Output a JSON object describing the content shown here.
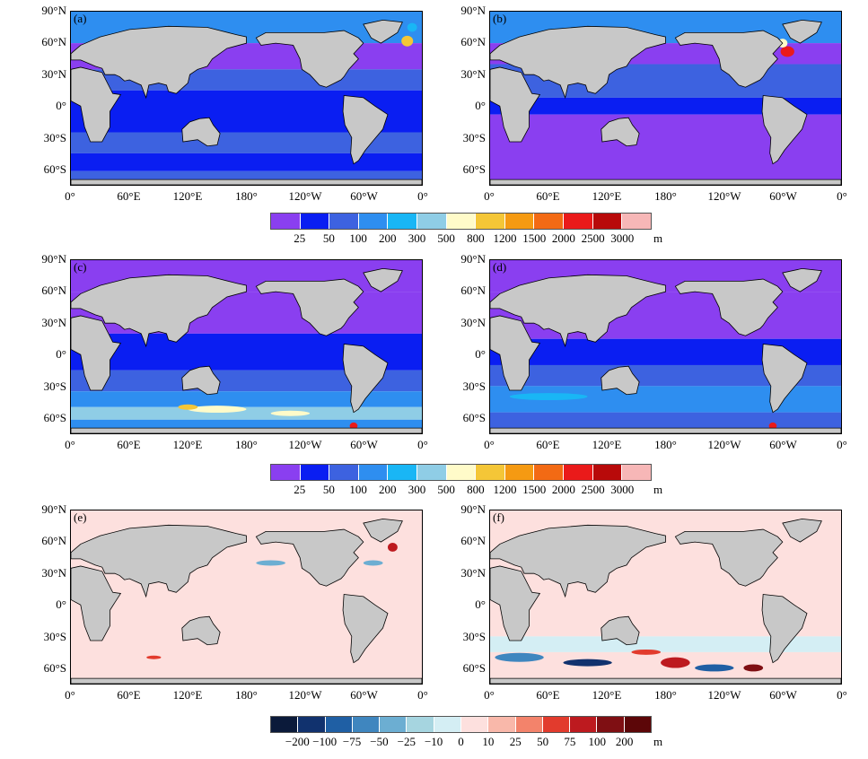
{
  "panels": [
    {
      "label": "(a)",
      "top_label": "90°N"
    },
    {
      "label": "(b)"
    },
    {
      "label": "(c)"
    },
    {
      "label": "(d)"
    },
    {
      "label": "(e)"
    },
    {
      "label": "(f)"
    }
  ],
  "lat_labels": [
    "90°N",
    "60°N",
    "30°N",
    "0°",
    "30°S",
    "60°S"
  ],
  "lon_labels": [
    "0°",
    "60°E",
    "120°E",
    "180°",
    "120°W",
    "60°W",
    "0°"
  ],
  "colorbar_mld": {
    "labels": [
      "25",
      "50",
      "100",
      "200",
      "300",
      "500",
      "800",
      "1200",
      "1500",
      "2000",
      "2500",
      "3000"
    ],
    "unit": "m",
    "colors": [
      "#8a3ff0",
      "#0a1ef2",
      "#3d62e0",
      "#2e8ef0",
      "#19b6f5",
      "#8fcde6",
      "#fffbc9",
      "#f4c637",
      "#f59a12",
      "#f36a14",
      "#ea1a1a",
      "#b80a0a",
      "#f7b7b7"
    ]
  },
  "colorbar_diff": {
    "labels": [
      "−200",
      "−100",
      "−75",
      "−50",
      "−25",
      "−10",
      "0",
      "10",
      "25",
      "50",
      "75",
      "100",
      "200"
    ],
    "unit": "m",
    "colors": [
      "#0b1a3a",
      "#11326e",
      "#1f5fa4",
      "#3f86bf",
      "#6caed2",
      "#a6d5e0",
      "#d4eef4",
      "#fde0de",
      "#f9b8aa",
      "#f3836b",
      "#e23b2d",
      "#bd1a1f",
      "#7f0f13",
      "#5c0608"
    ]
  }
}
